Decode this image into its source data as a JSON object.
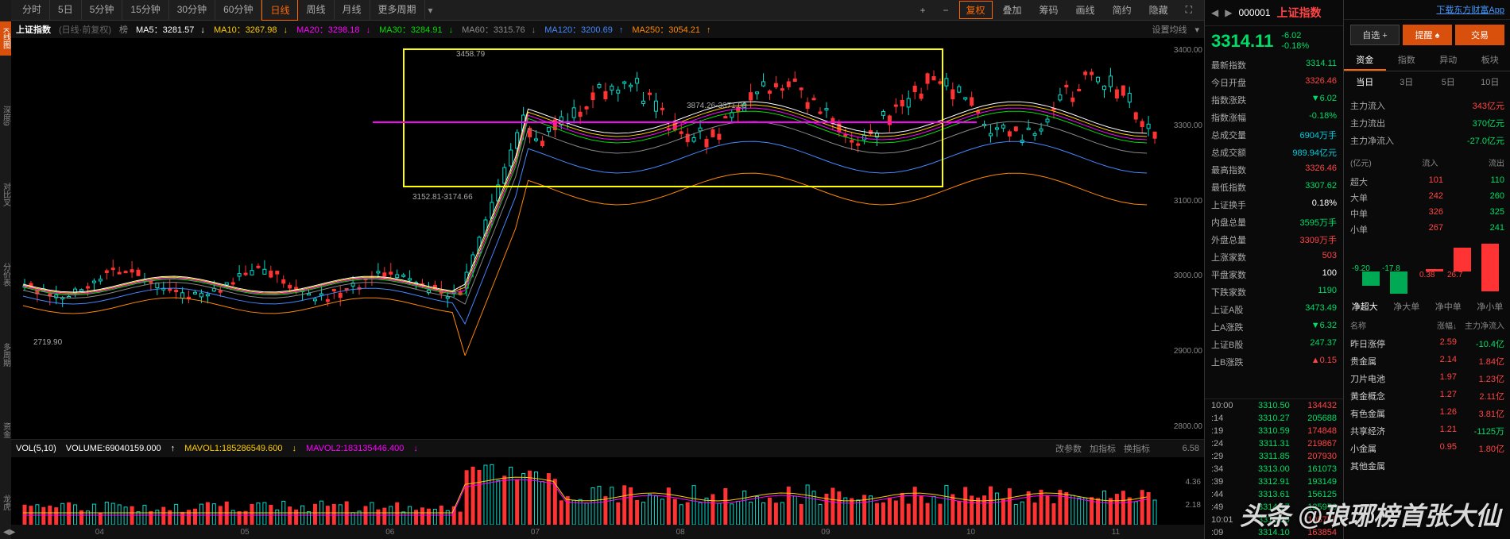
{
  "top_tabs": [
    "分时",
    "5日",
    "5分钟",
    "15分钟",
    "30分钟",
    "60分钟",
    "日线",
    "周线",
    "月线",
    "更多周期"
  ],
  "top_active_tab": "日线",
  "right_tools": {
    "plus": "+",
    "minus": "−",
    "fuquan": "复权",
    "diejia": "叠加",
    "chouma": "筹码",
    "huaxian": "画线",
    "jianyue": "简约",
    "yincang": "隐藏"
  },
  "info": {
    "name": "上证指数",
    "period_note": "(日线·前复权)",
    "ma_icon": "榜",
    "ma5_label": "MA5：3281.57",
    "ma10_label": "MA10：3267.98",
    "ma20_label": "MA20：3298.18",
    "ma30_label": "MA30：3284.91",
    "ma60_label": "MA60：3315.76",
    "ma120_label": "MA120：3200.69",
    "ma250_label": "MA250：3054.21",
    "set_ma": "设置均线"
  },
  "chart_labels": {
    "peak": "3458.79",
    "mid": "3874.26-3371.09",
    "low1": "3152.81-3174.66",
    "low2": "2719.90"
  },
  "y_axis": [
    "3400.00",
    "3300.00",
    "3100.00",
    "3000.00",
    "2900.00",
    "2800.00"
  ],
  "vol_info": {
    "label": "VOL(5,10)",
    "volume": "VOLUME:69040159.000",
    "mavol1": "MAVOL1:185286549.600",
    "mavol2": "MAVOL2:183135446.400",
    "tools": [
      "改参数",
      "加指标",
      "换指标"
    ]
  },
  "vol_y_axis": [
    "6.58",
    "4.36",
    "2.18"
  ],
  "time_axis": [
    "04",
    "05",
    "06",
    "07",
    "08",
    "09",
    "10",
    "11"
  ],
  "quote": {
    "code": "000001",
    "name": "上证指数",
    "price": "3314.11",
    "change": "-6.02",
    "change_pct": "-0.18%",
    "download": "下载东方财富App"
  },
  "action_buttons": {
    "zixuan": "自选 +",
    "tixing": "提醒 ♠",
    "jiaoyi": "交易"
  },
  "quote_data": [
    {
      "label": "最新指数",
      "val": "3314.11",
      "cls": "green"
    },
    {
      "label": "今日开盘",
      "val": "3326.46",
      "cls": "red"
    },
    {
      "label": "指数涨跌",
      "val": "▼6.02",
      "cls": "green"
    },
    {
      "label": "指数涨幅",
      "val": "-0.18%",
      "cls": "green"
    },
    {
      "label": "总成交量",
      "val": "6904万手",
      "cls": "cyan"
    },
    {
      "label": "总成交额",
      "val": "989.94亿元",
      "cls": "cyan"
    },
    {
      "label": "最高指数",
      "val": "3326.46",
      "cls": "red"
    },
    {
      "label": "最低指数",
      "val": "3307.62",
      "cls": "green"
    },
    {
      "label": "上证换手",
      "val": "0.18%",
      "cls": "white"
    },
    {
      "label": "内盘总量",
      "val": "3595万手",
      "cls": "green"
    },
    {
      "label": "外盘总量",
      "val": "3309万手",
      "cls": "red"
    },
    {
      "label": "上涨家数",
      "val": "503",
      "cls": "red"
    },
    {
      "label": "平盘家数",
      "val": "100",
      "cls": "white"
    },
    {
      "label": "下跌家数",
      "val": "1190",
      "cls": "green"
    },
    {
      "label": "上证A股",
      "val": "3473.49",
      "cls": "green"
    },
    {
      "label": "上A涨跌",
      "val": "▼6.32",
      "cls": "green"
    },
    {
      "label": "上证B股",
      "val": "247.37",
      "cls": "green"
    },
    {
      "label": "上B涨跌",
      "val": "▲0.15",
      "cls": "red"
    }
  ],
  "ticks": [
    {
      "t": "10:00",
      "p": "3310.50",
      "v": "134432",
      "pc": "green",
      "vc": "red"
    },
    {
      "t": ":14",
      "p": "3310.27",
      "v": "205688",
      "pc": "green",
      "vc": "green"
    },
    {
      "t": ":19",
      "p": "3310.59",
      "v": "174848",
      "pc": "green",
      "vc": "red"
    },
    {
      "t": ":24",
      "p": "3311.31",
      "v": "219867",
      "pc": "green",
      "vc": "red"
    },
    {
      "t": ":29",
      "p": "3311.85",
      "v": "207930",
      "pc": "green",
      "vc": "red"
    },
    {
      "t": ":34",
      "p": "3313.00",
      "v": "161073",
      "pc": "green",
      "vc": "green"
    },
    {
      "t": ":39",
      "p": "3312.91",
      "v": "193149",
      "pc": "green",
      "vc": "green"
    },
    {
      "t": ":44",
      "p": "3313.61",
      "v": "156125",
      "pc": "green",
      "vc": "green"
    },
    {
      "t": ":49",
      "p": "3314.17",
      "v": "125976",
      "pc": "green",
      "vc": "green"
    },
    {
      "t": "10:01",
      "p": "3313.80",
      "v": "105753",
      "pc": "green",
      "vc": "red"
    },
    {
      "t": ":09",
      "p": "3314.10",
      "v": "163854",
      "pc": "green",
      "vc": "red"
    }
  ],
  "flow_tabs": [
    "资金",
    "指数",
    "异动",
    "板块"
  ],
  "day_tabs": [
    "当日",
    "3日",
    "5日",
    "10日"
  ],
  "flow": [
    {
      "label": "主力流入",
      "val": "343亿元",
      "cls": "red"
    },
    {
      "label": "主力流出",
      "val": "370亿元",
      "cls": "green"
    },
    {
      "label": "主力净流入",
      "val": "-27.0亿元",
      "cls": "green"
    }
  ],
  "flow_header": {
    "c1": "(亿元)",
    "c2": "流入",
    "c3": "流出"
  },
  "orders": [
    {
      "label": "超大",
      "in": "101",
      "out": "110"
    },
    {
      "label": "大单",
      "in": "242",
      "out": "260"
    },
    {
      "label": "中单",
      "in": "326",
      "out": "325"
    },
    {
      "label": "小单",
      "in": "267",
      "out": "241"
    }
  ],
  "mini_vals": {
    "v1": "-9.20",
    "v2": "-17.8",
    "v3": "0.38",
    "v4": "26.7"
  },
  "sector_tabs": [
    "净超大",
    "净大单",
    "净中单",
    "净小单"
  ],
  "sector_header": {
    "c1": "名称",
    "c2": "涨幅↓",
    "c3": "主力净流入"
  },
  "sectors": [
    {
      "name": "昨日涨停",
      "pct": "2.59",
      "flow": "-10.4亿",
      "pc": "red",
      "fc": "green"
    },
    {
      "name": "贵金属",
      "pct": "2.14",
      "flow": "1.84亿",
      "pc": "red",
      "fc": "red"
    },
    {
      "name": "刀片电池",
      "pct": "1.97",
      "flow": "1.23亿",
      "pc": "red",
      "fc": "red"
    },
    {
      "name": "黄金概念",
      "pct": "1.27",
      "flow": "2.11亿",
      "pc": "red",
      "fc": "red"
    },
    {
      "name": "有色金属",
      "pct": "1.26",
      "flow": "3.81亿",
      "pc": "red",
      "fc": "red"
    },
    {
      "name": "共享经济",
      "pct": "1.21",
      "flow": "-1125万",
      "pc": "red",
      "fc": "green"
    },
    {
      "name": "小金属",
      "pct": "0.95",
      "flow": "1.80亿",
      "pc": "red",
      "fc": "red"
    },
    {
      "name": "其他金属",
      "pct": "",
      "flow": "",
      "pc": "red",
      "fc": "red"
    }
  ],
  "watermark": "头条 @琅琊榜首张大仙",
  "colors": {
    "ma5": "#ffffff",
    "ma10": "#ffcc00",
    "ma20": "#ff00ff",
    "ma30": "#00dd00",
    "ma60": "#888888",
    "ma120": "#4488ff",
    "ma250": "#ff8800",
    "up": "#00ddcc",
    "down": "#ff3333"
  }
}
